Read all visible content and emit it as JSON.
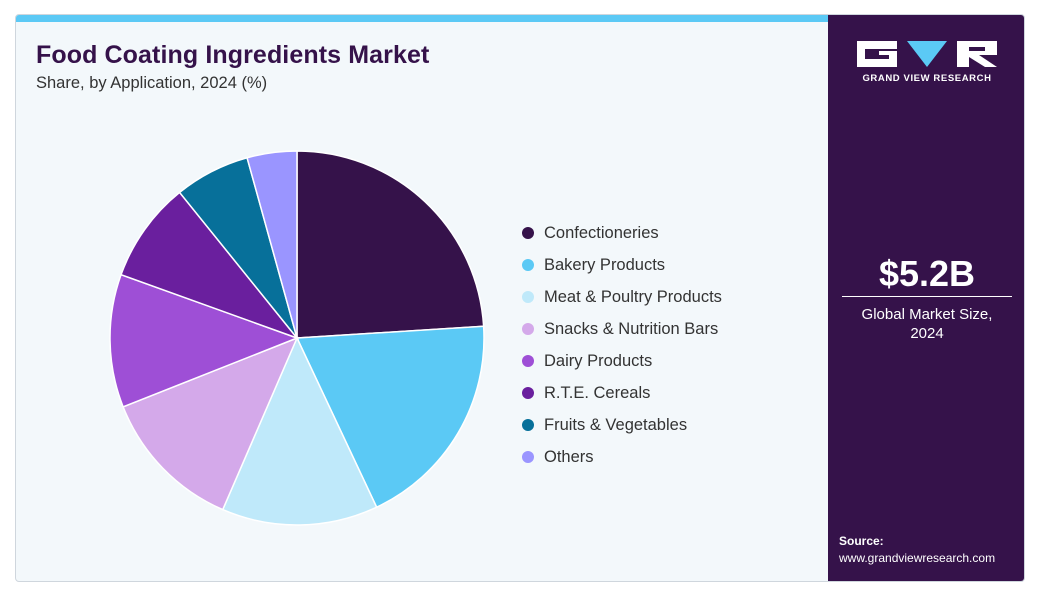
{
  "header": {
    "title": "Food Coating Ingredients Market",
    "subtitle": "Share, by Application, 2024 (%)"
  },
  "chart_data": {
    "type": "pie",
    "title": "Food Coating Ingredients Market",
    "subtitle": "Share, by Application, 2024 (%)",
    "slices": [
      {
        "label": "Confectioneries",
        "value": 24.0,
        "color": "#35124a"
      },
      {
        "label": "Bakery Products",
        "value": 19.0,
        "color": "#5bc9f5"
      },
      {
        "label": "Meat & Poultry Products",
        "value": 13.5,
        "color": "#bfe9fa"
      },
      {
        "label": "Snacks & Nutrition Bars",
        "value": 12.5,
        "color": "#d4a9ea"
      },
      {
        "label": "Dairy Products",
        "value": 11.5,
        "color": "#9e4fd6"
      },
      {
        "label": "R.T.E. Cereals",
        "value": 8.7,
        "color": "#6a1f9e"
      },
      {
        "label": "Fruits & Vegetables",
        "value": 6.5,
        "color": "#07709a"
      },
      {
        "label": "Others",
        "value": 4.3,
        "color": "#9a95ff"
      }
    ],
    "legend_position": "right",
    "start_angle": "12 o'clock",
    "direction": "clockwise"
  },
  "side_panel": {
    "brand": "GRAND VIEW RESEARCH",
    "market_size": "$5.2B",
    "market_size_label_line1": "Global Market Size,",
    "market_size_label_line2": "2024",
    "source_label": "Source:",
    "source_url": "www.grandviewresearch.com"
  },
  "colors": {
    "accent": "#5bc9f5",
    "panel": "#35124a",
    "background": "#f3f8fb"
  }
}
